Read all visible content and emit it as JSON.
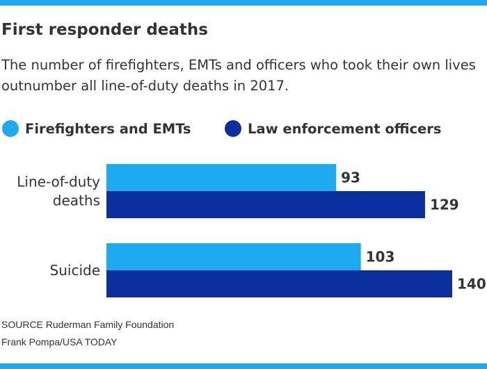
{
  "chart_data": {
    "type": "bar",
    "orientation": "horizontal",
    "title": "First responder deaths",
    "subtitle": "The number of firefighters, EMTs and officers who took their own lives outnumber all line-of-duty deaths in 2017.",
    "categories": [
      "Line-of-duty deaths",
      "Suicide"
    ],
    "series": [
      {
        "name": "Firefighters and EMTs",
        "color": "#1eaaf1",
        "values": [
          93,
          103
        ]
      },
      {
        "name": "Law enforcement officers",
        "color": "#0b2f9e",
        "values": [
          129,
          140
        ]
      }
    ],
    "xlim": [
      0,
      140
    ],
    "grid": false,
    "legend_position": "top-left",
    "xlabel": "",
    "ylabel": ""
  },
  "footer": {
    "source": "SOURCE Ruderman Family Foundation",
    "credit": "Frank Pompa/USA TODAY"
  },
  "colors": {
    "accent_rule": "#1eaaf1",
    "text": "#333333"
  }
}
